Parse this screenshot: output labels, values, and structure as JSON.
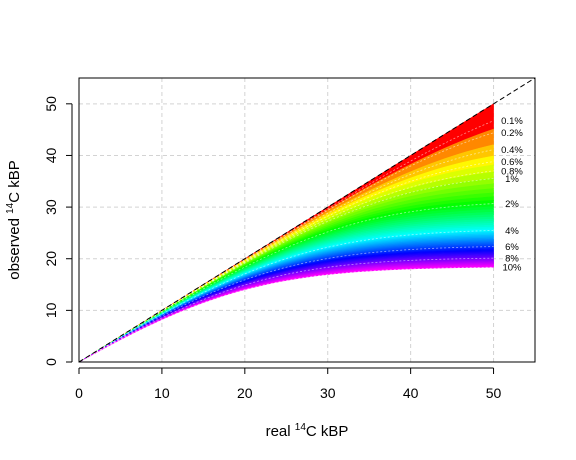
{
  "chart_data": {
    "type": "area",
    "title": "",
    "xlabel": {
      "pre": "real ",
      "sup": "14",
      "post": "C kBP"
    },
    "ylabel": {
      "pre": "observed ",
      "sup": "14",
      "post": "C kBP"
    },
    "xlim": [
      0,
      55
    ],
    "ylim": [
      0,
      55
    ],
    "x_ticks": [
      0,
      10,
      20,
      30,
      40,
      50
    ],
    "y_ticks": [
      0,
      10,
      20,
      30,
      40,
      50
    ],
    "grid": true,
    "reference_line": "y = x (dashed)",
    "contamination_range_percent": [
      0,
      10
    ],
    "curve_labels": [
      {
        "text": "0.1%",
        "contamination": 0.001
      },
      {
        "text": "0.2%",
        "contamination": 0.002
      },
      {
        "text": "0.4%",
        "contamination": 0.004
      },
      {
        "text": "0.6%",
        "contamination": 0.006
      },
      {
        "text": "0.8%",
        "contamination": 0.008
      },
      {
        "text": "1%",
        "contamination": 0.01
      },
      {
        "text": "2%",
        "contamination": 0.02
      },
      {
        "text": "4%",
        "contamination": 0.04
      },
      {
        "text": "6%",
        "contamination": 0.06
      },
      {
        "text": "8%",
        "contamination": 0.08
      },
      {
        "text": "10%",
        "contamination": 0.1
      }
    ],
    "colors": {
      "low_contamination": "#ff0000",
      "high_contamination": "#ff00ff",
      "grid": "#d3d3d3",
      "reference_line": "#000000"
    }
  }
}
